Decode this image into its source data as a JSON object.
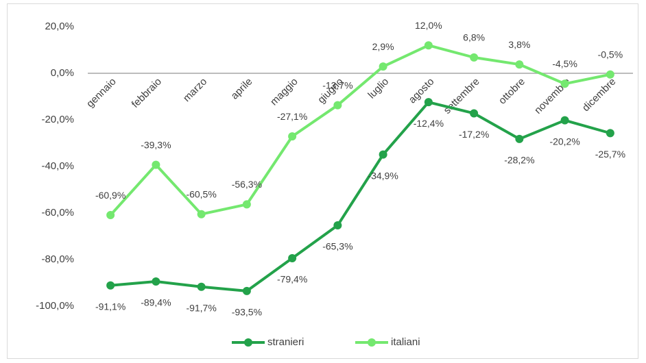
{
  "chart_data": {
    "type": "line",
    "categories": [
      "gennaio",
      "febbraio",
      "marzo",
      "aprile",
      "maggio",
      "giugno",
      "luglio",
      "agosto",
      "settembre",
      "ottobre",
      "novembre",
      "dicembre"
    ],
    "series": [
      {
        "name": "stranieri",
        "color": "#23a24a",
        "values": [
          -91.1,
          -89.4,
          -91.7,
          -93.5,
          -79.4,
          -65.3,
          -34.9,
          -12.4,
          -17.2,
          -28.2,
          -20.2,
          -25.7
        ],
        "value_labels": [
          "-91,1%",
          "-89,4%",
          "-91,7%",
          "-93,5%",
          "-79,4%",
          "-65,3%",
          "-34,9%",
          "-12,4%",
          "-17,2%",
          "-28,2%",
          "-20,2%",
          "-25,7%"
        ]
      },
      {
        "name": "italiani",
        "color": "#74e86f",
        "values": [
          -60.9,
          -39.3,
          -60.5,
          -56.3,
          -27.1,
          -13.7,
          2.9,
          12.0,
          6.8,
          3.8,
          -4.5,
          -0.5
        ],
        "value_labels": [
          "-60,9%",
          "-39,3%",
          "-60,5%",
          "-56,3%",
          "-27,1%",
          "-13,7%",
          "2,9%",
          "12,0%",
          "6,8%",
          "3,8%",
          "-4,5%",
          "-0,5%"
        ]
      }
    ],
    "ylim": [
      -100,
      20
    ],
    "yticks": [
      {
        "value": -100,
        "label": "-100,0%"
      },
      {
        "value": -80,
        "label": "-80,0%"
      },
      {
        "value": -60,
        "label": "-60,0%"
      },
      {
        "value": -40,
        "label": "-40,0%"
      },
      {
        "value": -20,
        "label": "-20,0%"
      },
      {
        "value": 0,
        "label": "0,0%"
      },
      {
        "value": 20,
        "label": "20,0%"
      }
    ],
    "legend": "bottom"
  }
}
